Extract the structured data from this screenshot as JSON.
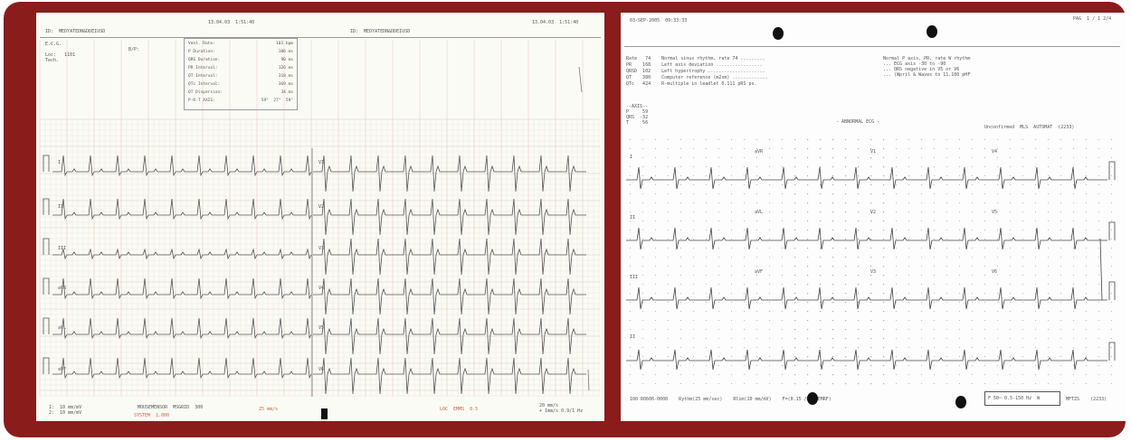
{
  "images": {
    "left_ecg": {
      "header_left_id": "ID:  MEDYATEDN&DDEIUSD",
      "header_right_id": "ID:  MEDYATEDN&DDEIUSD",
      "header_date_1": "13.04.03  1:51:40",
      "header_date_2": "13.04.03  1:51:40",
      "patient_info": "E.C.G.\n\nLoc:   1101\nTech.",
      "bp_label": "B/P:",
      "measurements": [
        {
          "label": "Vent. Rate:",
          "value": "101 bpm"
        },
        {
          "label": "P Duration:",
          "value": "106 ms"
        },
        {
          "label": "QRS Duration:",
          "value": "90 ms"
        },
        {
          "label": "PR Interval:",
          "value": "126 ms"
        },
        {
          "label": "QT Interval:",
          "value": "318 ms"
        },
        {
          "label": "QTc Interval:",
          "value": "369 ms"
        },
        {
          "label": "QT Dispersion:",
          "value": "34 ms"
        },
        {
          "label": "P-R-T AXIS:",
          "value": "59°  27°  59°"
        }
      ],
      "lead_labels_left": [
        "I",
        "II",
        "III",
        "aVR",
        "aVL",
        "aVF"
      ],
      "lead_labels_right": [
        "V1",
        "V2",
        "V3",
        "V4",
        "V5",
        "V6"
      ],
      "footer_left": "1:  10 mm/mV\n2:  10 mm/mV",
      "footer_center": "MOUSEMENSOR  MSGRID  300",
      "footer_red_1": "SYSTEM  1.000",
      "footer_red_2": "25 mm/s",
      "footer_red_3": "LOC  EMMS  0.5",
      "footer_right": "20 mm/s\n+ 1mm/s 0.9/1 Hz"
    },
    "right_ecg": {
      "header_date": "03-SEP-2005  09:33:33",
      "header_right": "PAG  1 / 1 2/4",
      "info_lines": [
        "Rate   74    Normal sinus rhythm, rate 74 .........",
        "PR    168    Left axis deviation .................",
        "QRSD  102    Left hypertrophy .....................",
        "QT    380    Computer reference (m2sm) .............",
        "QTc   424    R-multiple in leadlet 0.111 pRS ps."
      ],
      "info_right": "Normal P axis, PR, rate W rhythm\n... ECG axis -30 to -90\n... QRS negative in V5 or V6\n... (Wpril & Waves to 11.100 pHF",
      "axis_block": "--AXIS--\nP     59\nQRS  -32\nT     56",
      "center_label": "- ABNORMAL ECG -",
      "right_label": "Unconfirmed  MLS  AUTOMAT  (2233)",
      "lead_labels": [
        "I",
        "aVR",
        "V1",
        "V4",
        "II",
        "aVL",
        "V2",
        "V5",
        "III",
        "aVF",
        "V3",
        "V6",
        "II"
      ],
      "footer_text": "100 R0606-0000    Rythm(25 mm/sec)    Rlim(10 mm/mV)    F=(0.15 /MHz EMRF)",
      "footer_box": "F 50~ 0.5-150 Hz  W",
      "footer_end": "MFTZS    (2233)"
    }
  }
}
